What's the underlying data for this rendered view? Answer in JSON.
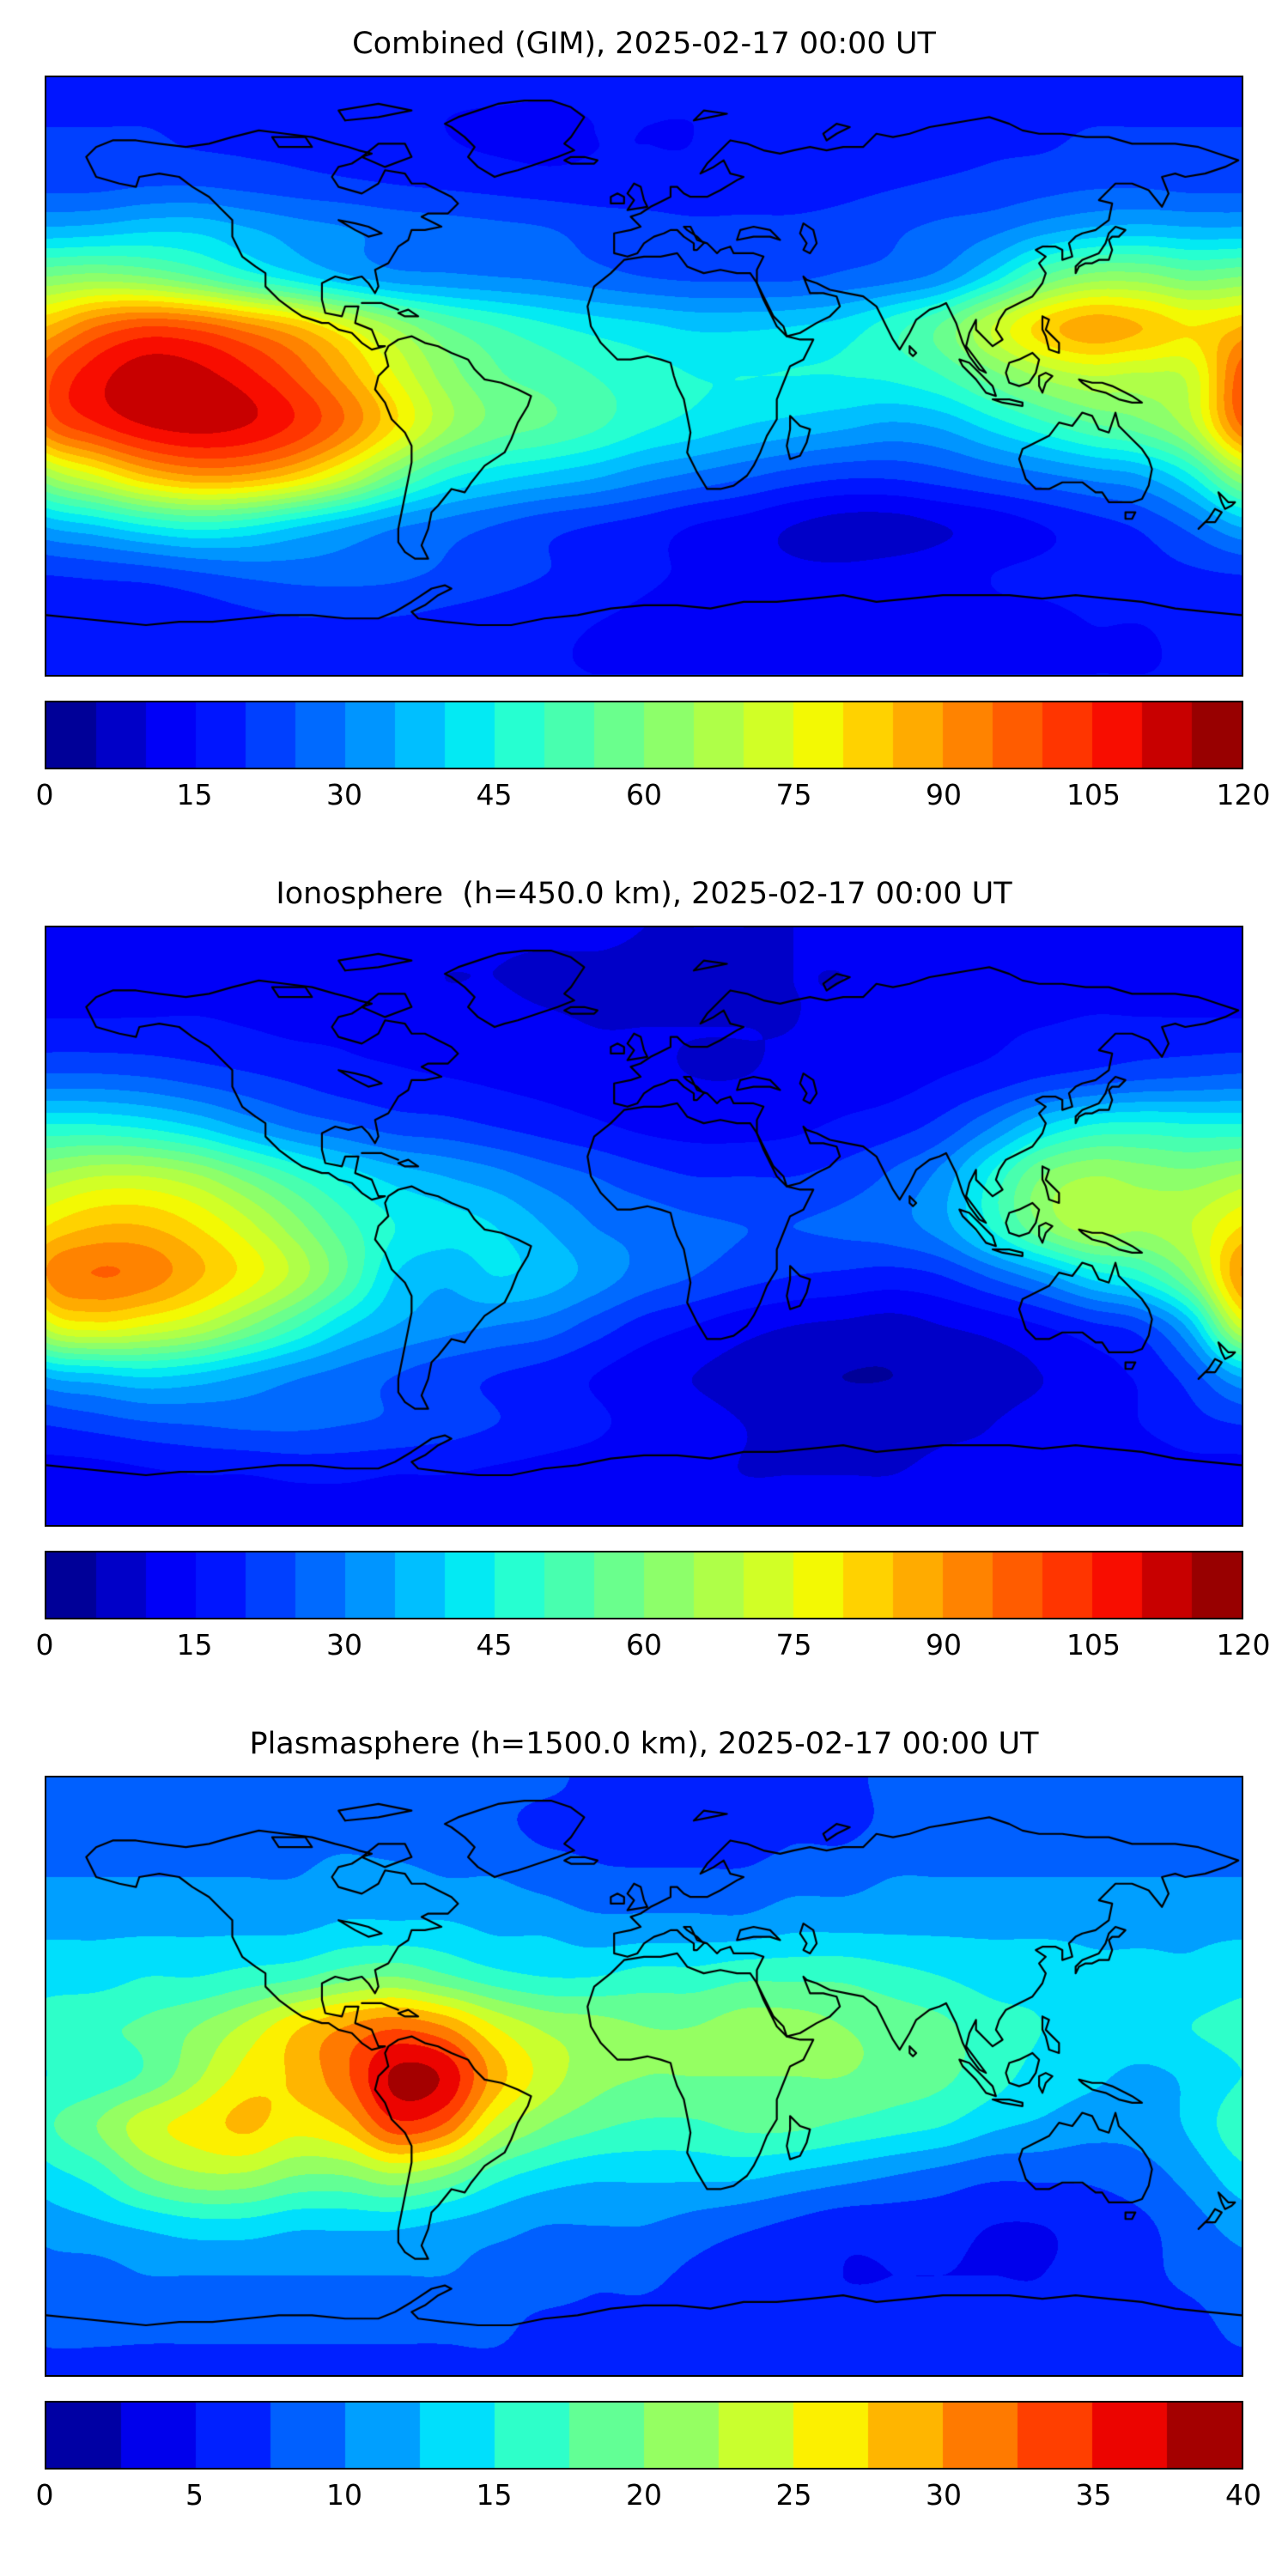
{
  "figure": {
    "background": "#ffffff",
    "frame_color": "#000000",
    "coastline_color": "#000000"
  },
  "chart_data": [
    {
      "type": "heatmap",
      "title": "Combined (GIM), 2025-02-17 00:00 UT",
      "colormap": "jet",
      "projection": "equirectangular",
      "lon_range": [
        -180,
        180
      ],
      "lat_range": [
        -90,
        90
      ],
      "vmin": 0,
      "vmax": 120,
      "levels": 24,
      "colorbar_ticks": [
        0,
        15,
        30,
        45,
        60,
        75,
        90,
        105,
        120
      ],
      "lon": [
        -180,
        -165,
        -150,
        -135,
        -120,
        -105,
        -90,
        -75,
        -60,
        -45,
        -30,
        -15,
        0,
        15,
        30,
        45,
        60,
        75,
        90,
        105,
        120,
        135,
        150,
        165,
        180
      ],
      "lat": [
        90,
        75,
        60,
        45,
        30,
        15,
        0,
        -15,
        -30,
        -45,
        -60,
        -75,
        -90
      ],
      "values": [
        [
          18,
          18,
          18,
          18,
          18,
          18,
          18,
          18,
          17,
          17,
          16,
          16,
          16,
          16,
          16,
          16,
          17,
          17,
          17,
          18,
          18,
          18,
          18,
          18,
          18
        ],
        [
          20,
          20,
          20,
          19,
          19,
          19,
          18,
          17,
          15,
          14,
          14,
          15,
          15,
          15,
          16,
          16,
          17,
          18,
          18,
          19,
          19,
          20,
          20,
          20,
          20
        ],
        [
          22,
          22,
          23,
          23,
          22,
          21,
          20,
          19,
          18,
          17,
          16,
          16,
          16,
          16,
          17,
          17,
          18,
          19,
          20,
          21,
          22,
          23,
          23,
          22,
          22
        ],
        [
          35,
          36,
          38,
          38,
          35,
          32,
          30,
          28,
          27,
          26,
          25,
          23,
          22,
          21,
          21,
          21,
          22,
          24,
          26,
          28,
          32,
          35,
          36,
          35,
          35
        ],
        [
          60,
          62,
          60,
          55,
          48,
          42,
          36,
          32,
          31,
          30,
          29,
          27,
          25,
          24,
          24,
          24,
          26,
          28,
          32,
          42,
          55,
          62,
          62,
          58,
          60
        ],
        [
          85,
          95,
          100,
          98,
          92,
          85,
          75,
          64,
          55,
          50,
          46,
          43,
          41,
          39,
          39,
          40,
          42,
          48,
          56,
          70,
          82,
          88,
          85,
          80,
          85
        ],
        [
          98,
          108,
          113,
          112,
          107,
          99,
          88,
          75,
          63,
          56,
          53,
          50,
          47,
          45,
          45,
          45,
          45,
          46,
          50,
          58,
          66,
          70,
          69,
          72,
          98
        ],
        [
          95,
          104,
          110,
          112,
          110,
          104,
          94,
          80,
          66,
          58,
          55,
          51,
          46,
          43,
          40,
          38,
          36,
          34,
          36,
          42,
          48,
          54,
          58,
          68,
          95
        ],
        [
          65,
          75,
          85,
          90,
          89,
          83,
          72,
          58,
          47,
          42,
          39,
          36,
          32,
          29,
          26,
          23,
          21,
          21,
          23,
          26,
          29,
          32,
          35,
          45,
          65
        ],
        [
          36,
          40,
          45,
          48,
          46,
          41,
          36,
          31,
          28,
          25,
          22,
          20,
          18,
          15,
          13,
          10,
          8,
          8,
          10,
          12,
          15,
          18,
          21,
          27,
          36
        ],
        [
          20,
          21,
          22,
          24,
          26,
          27,
          27,
          26,
          24,
          22,
          20,
          18,
          16,
          14,
          12,
          11,
          11,
          12,
          13,
          15,
          16,
          17,
          18,
          19,
          20
        ],
        [
          16,
          16,
          16,
          17,
          18,
          19,
          19,
          19,
          18,
          17,
          16,
          15,
          14,
          13,
          12,
          12,
          12,
          13,
          13,
          14,
          14,
          15,
          15,
          16,
          16
        ],
        [
          15,
          15,
          15,
          15,
          15,
          15,
          15,
          15,
          15,
          15,
          15,
          15,
          15,
          15,
          15,
          15,
          15,
          15,
          15,
          15,
          15,
          15,
          15,
          15,
          15
        ]
      ]
    },
    {
      "type": "heatmap",
      "title": "Ionosphere  (h=450.0 km), 2025-02-17 00:00 UT",
      "colormap": "jet",
      "projection": "equirectangular",
      "lon_range": [
        -180,
        180
      ],
      "lat_range": [
        -90,
        90
      ],
      "vmin": 0,
      "vmax": 120,
      "levels": 24,
      "colorbar_ticks": [
        0,
        15,
        30,
        45,
        60,
        75,
        90,
        105,
        120
      ],
      "lon": [
        -180,
        -165,
        -150,
        -135,
        -120,
        -105,
        -90,
        -75,
        -60,
        -45,
        -30,
        -15,
        0,
        15,
        30,
        45,
        60,
        75,
        90,
        105,
        120,
        135,
        150,
        165,
        180
      ],
      "lat": [
        90,
        75,
        60,
        45,
        30,
        15,
        0,
        -15,
        -30,
        -45,
        -60,
        -75,
        -90
      ],
      "values": [
        [
          12,
          12,
          12,
          12,
          12,
          12,
          12,
          12,
          12,
          11,
          11,
          11,
          10,
          10,
          10,
          10,
          11,
          11,
          11,
          12,
          12,
          12,
          12,
          12,
          12
        ],
        [
          13,
          13,
          13,
          13,
          13,
          12,
          12,
          11,
          10,
          10,
          9,
          9,
          9,
          9,
          9,
          10,
          10,
          11,
          11,
          12,
          12,
          13,
          13,
          13,
          13
        ],
        [
          16,
          16,
          16,
          16,
          15,
          14,
          14,
          13,
          12,
          12,
          11,
          10,
          10,
          10,
          10,
          10,
          11,
          12,
          13,
          14,
          15,
          16,
          16,
          16,
          16
        ],
        [
          26,
          26,
          25,
          23,
          21,
          19,
          17,
          16,
          15,
          14,
          13,
          12,
          11,
          10,
          10,
          11,
          12,
          13,
          15,
          17,
          20,
          22,
          24,
          25,
          26
        ],
        [
          46,
          46,
          44,
          40,
          34,
          29,
          26,
          23,
          22,
          20,
          18,
          16,
          14,
          13,
          13,
          14,
          16,
          18,
          22,
          30,
          40,
          46,
          47,
          46,
          46
        ],
        [
          66,
          70,
          70,
          66,
          58,
          50,
          43,
          38,
          35,
          32,
          28,
          25,
          22,
          20,
          20,
          20,
          22,
          26,
          32,
          46,
          60,
          65,
          63,
          62,
          66
        ],
        [
          80,
          85,
          85,
          80,
          72,
          62,
          52,
          45,
          42,
          40,
          35,
          30,
          28,
          26,
          25,
          25,
          26,
          28,
          33,
          46,
          60,
          68,
          66,
          70,
          80
        ],
        [
          90,
          95,
          93,
          86,
          78,
          68,
          55,
          40,
          36,
          40,
          38,
          33,
          28,
          25,
          22,
          20,
          19,
          18,
          20,
          26,
          33,
          42,
          48,
          62,
          90
        ],
        [
          72,
          78,
          75,
          70,
          61,
          51,
          41,
          35,
          32,
          30,
          28,
          23,
          18,
          15,
          12,
          10,
          9,
          8,
          10,
          12,
          15,
          19,
          23,
          38,
          72
        ],
        [
          36,
          39,
          41,
          39,
          35,
          31,
          28,
          25,
          22,
          20,
          18,
          15,
          12,
          10,
          8,
          6,
          5,
          5,
          6,
          8,
          10,
          13,
          16,
          23,
          36
        ],
        [
          20,
          22,
          24,
          25,
          26,
          26,
          25,
          24,
          22,
          20,
          18,
          16,
          13,
          12,
          10,
          9,
          8,
          8,
          9,
          10,
          12,
          13,
          15,
          18,
          20
        ],
        [
          13,
          13,
          14,
          15,
          15,
          16,
          16,
          15,
          15,
          14,
          13,
          12,
          11,
          11,
          10,
          10,
          10,
          10,
          11,
          11,
          12,
          12,
          12,
          13,
          13
        ],
        [
          12,
          12,
          12,
          12,
          12,
          12,
          12,
          12,
          12,
          12,
          12,
          12,
          12,
          12,
          12,
          12,
          12,
          12,
          12,
          12,
          12,
          12,
          12,
          12,
          12
        ]
      ]
    },
    {
      "type": "heatmap",
      "title": "Plasmasphere (h=1500.0 km), 2025-02-17 00:00 UT",
      "colormap": "jet",
      "projection": "equirectangular",
      "lon_range": [
        -180,
        180
      ],
      "lat_range": [
        -90,
        90
      ],
      "vmin": 0,
      "vmax": 40,
      "levels": 16,
      "colorbar_ticks": [
        0,
        5,
        10,
        15,
        20,
        25,
        30,
        35,
        40
      ],
      "lon": [
        -180,
        -165,
        -150,
        -135,
        -120,
        -105,
        -90,
        -75,
        -60,
        -45,
        -30,
        -15,
        0,
        15,
        30,
        45,
        60,
        75,
        90,
        105,
        120,
        135,
        150,
        165,
        180
      ],
      "lat": [
        90,
        75,
        60,
        45,
        30,
        15,
        0,
        -15,
        -30,
        -45,
        -60,
        -75,
        -90
      ],
      "values": [
        [
          8,
          8,
          8,
          8,
          8,
          8,
          8,
          8,
          8,
          8,
          8,
          7,
          7,
          7,
          7,
          7,
          7,
          8,
          8,
          8,
          8,
          8,
          8,
          8,
          8
        ],
        [
          9,
          9,
          9,
          9,
          9,
          9,
          9,
          8,
          8,
          8,
          7,
          7,
          6,
          6,
          6,
          7,
          7,
          8,
          8,
          8,
          9,
          9,
          9,
          9,
          9
        ],
        [
          10,
          10,
          10,
          10,
          10,
          10,
          11,
          11,
          10,
          10,
          9,
          8,
          8,
          8,
          8,
          9,
          9,
          10,
          10,
          10,
          10,
          10,
          10,
          10,
          10
        ],
        [
          12,
          12,
          12,
          12,
          12,
          12,
          13,
          13,
          13,
          12,
          12,
          11,
          11,
          11,
          11,
          12,
          12,
          12,
          12,
          12,
          12,
          12,
          12,
          12,
          12
        ],
        [
          14,
          14,
          15,
          15,
          16,
          17,
          19,
          20,
          18,
          16,
          15,
          15,
          16,
          16,
          17,
          17,
          17,
          16,
          15,
          14,
          14,
          13,
          13,
          13,
          14
        ],
        [
          16,
          17,
          18,
          20,
          23,
          27,
          30,
          32,
          30,
          25,
          22,
          21,
          20,
          20,
          21,
          21,
          20,
          19,
          18,
          16,
          15,
          14,
          14,
          15,
          16
        ],
        [
          15,
          16,
          18,
          22,
          26,
          28,
          32,
          38,
          37,
          29,
          24,
          21,
          20,
          20,
          20,
          20,
          20,
          19,
          18,
          16,
          14,
          13,
          12,
          13,
          15
        ],
        [
          17,
          20,
          24,
          26,
          28,
          26,
          28,
          34,
          32,
          24,
          20,
          18,
          17,
          17,
          18,
          18,
          17,
          16,
          15,
          13,
          12,
          11,
          11,
          13,
          17
        ],
        [
          14,
          16,
          20,
          22,
          22,
          20,
          20,
          22,
          20,
          16,
          14,
          13,
          13,
          13,
          13,
          12,
          11,
          10,
          9,
          8,
          8,
          8,
          9,
          11,
          14
        ],
        [
          11,
          12,
          13,
          14,
          14,
          13,
          13,
          13,
          12,
          11,
          10,
          10,
          10,
          9,
          8,
          7,
          6,
          6,
          6,
          5,
          5,
          6,
          7,
          9,
          11
        ],
        [
          9,
          9,
          10,
          10,
          10,
          10,
          10,
          10,
          10,
          9,
          9,
          8,
          8,
          7,
          6,
          6,
          5,
          5,
          5,
          5,
          5,
          6,
          7,
          8,
          9
        ],
        [
          8,
          8,
          8,
          8,
          8,
          8,
          8,
          8,
          8,
          8,
          7,
          7,
          7,
          7,
          6,
          6,
          6,
          6,
          6,
          6,
          6,
          7,
          7,
          7,
          8
        ],
        [
          7,
          7,
          7,
          7,
          7,
          7,
          7,
          7,
          7,
          7,
          7,
          7,
          7,
          7,
          7,
          7,
          7,
          7,
          7,
          7,
          7,
          7,
          7,
          7,
          7
        ]
      ]
    }
  ]
}
